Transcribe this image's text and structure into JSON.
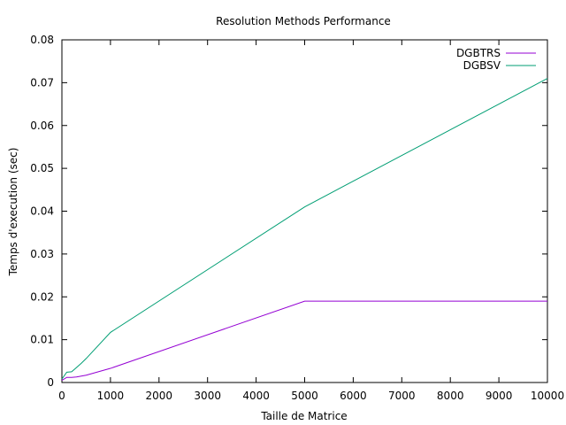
{
  "chart_data": {
    "type": "line",
    "title": "Resolution Methods Performance",
    "xlabel": "Taille de Matrice",
    "ylabel": "Temps d'execution (sec)",
    "xlim": [
      0,
      10000
    ],
    "ylim": [
      0,
      0.08
    ],
    "x_ticks": [
      0,
      1000,
      2000,
      3000,
      4000,
      5000,
      6000,
      7000,
      8000,
      9000,
      10000
    ],
    "y_ticks": [
      0,
      0.01,
      0.02,
      0.03,
      0.04,
      0.05,
      0.06,
      0.07,
      0.08
    ],
    "x_tick_labels": [
      "0",
      "1000",
      "2000",
      "3000",
      "4000",
      "5000",
      "6000",
      "7000",
      "8000",
      "9000",
      "10000"
    ],
    "y_tick_labels": [
      "0",
      "0.01",
      "0.02",
      "0.03",
      "0.04",
      "0.05",
      "0.06",
      "0.07",
      "0.08"
    ],
    "grid": false,
    "legend_position": "top-right",
    "series": [
      {
        "name": "DGBTRS",
        "color": "#9400d3",
        "x": [
          0,
          100,
          200,
          300,
          400,
          500,
          1000,
          5000,
          10000
        ],
        "y": [
          0.0005,
          0.0012,
          0.0012,
          0.0013,
          0.0015,
          0.0017,
          0.0033,
          0.019,
          0.019
        ]
      },
      {
        "name": "DGBSV",
        "color": "#009e73",
        "x": [
          0,
          100,
          200,
          300,
          400,
          500,
          1000,
          5000,
          10000
        ],
        "y": [
          0.0008,
          0.0024,
          0.0025,
          0.0035,
          0.0045,
          0.0056,
          0.0117,
          0.041,
          0.071
        ]
      }
    ]
  }
}
